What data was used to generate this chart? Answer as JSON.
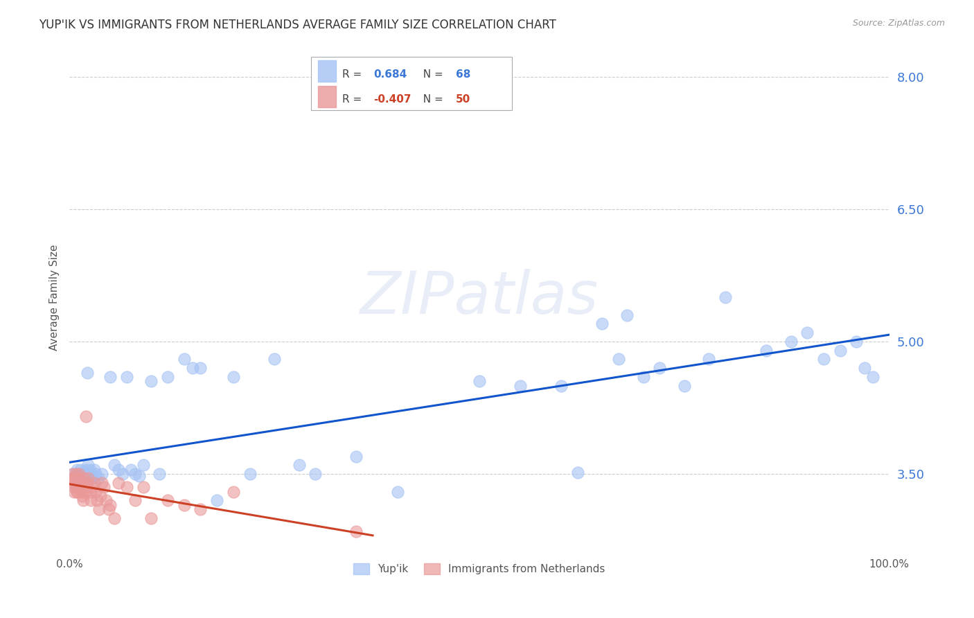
{
  "title": "YUP'IK VS IMMIGRANTS FROM NETHERLANDS AVERAGE FAMILY SIZE CORRELATION CHART",
  "source": "Source: ZipAtlas.com",
  "ylabel": "Average Family Size",
  "xlim": [
    0,
    1.0
  ],
  "ylim": [
    2.6,
    8.4
  ],
  "yticks": [
    3.5,
    5.0,
    6.5,
    8.0
  ],
  "xticks": [
    0.0,
    1.0
  ],
  "xticklabels": [
    "0.0%",
    "100.0%"
  ],
  "r_blue": 0.684,
  "n_blue": 68,
  "r_pink": -0.407,
  "n_pink": 50,
  "blue_color": "#a4c2f4",
  "pink_color": "#ea9999",
  "blue_line_color": "#1155cc",
  "pink_line_color": "#cc4125",
  "legend_blue_label": "Yup'ik",
  "legend_pink_label": "Immigrants from Netherlands",
  "watermark": "ZIPatlas",
  "blue_scatter_x": [
    0.005,
    0.007,
    0.008,
    0.009,
    0.01,
    0.01,
    0.012,
    0.013,
    0.014,
    0.015,
    0.016,
    0.018,
    0.019,
    0.02,
    0.022,
    0.023,
    0.024,
    0.025,
    0.026,
    0.027,
    0.028,
    0.03,
    0.032,
    0.035,
    0.04,
    0.05,
    0.055,
    0.06,
    0.065,
    0.07,
    0.075,
    0.08,
    0.085,
    0.09,
    0.1,
    0.11,
    0.12,
    0.14,
    0.15,
    0.16,
    0.18,
    0.2,
    0.22,
    0.25,
    0.28,
    0.3,
    0.35,
    0.4,
    0.5,
    0.55,
    0.6,
    0.62,
    0.65,
    0.67,
    0.68,
    0.7,
    0.72,
    0.75,
    0.78,
    0.8,
    0.85,
    0.88,
    0.9,
    0.92,
    0.94,
    0.96,
    0.97,
    0.98
  ],
  "blue_scatter_y": [
    3.5,
    3.45,
    3.5,
    3.55,
    3.5,
    3.4,
    3.45,
    3.55,
    3.5,
    3.45,
    3.5,
    3.52,
    3.48,
    3.55,
    4.65,
    3.6,
    3.5,
    3.55,
    3.5,
    3.45,
    3.48,
    3.55,
    3.5,
    3.45,
    3.5,
    4.6,
    3.6,
    3.55,
    3.5,
    4.6,
    3.55,
    3.5,
    3.48,
    3.6,
    4.55,
    3.5,
    4.6,
    4.8,
    4.7,
    4.7,
    3.2,
    4.6,
    3.5,
    4.8,
    3.6,
    3.5,
    3.7,
    3.3,
    4.55,
    4.5,
    4.5,
    3.52,
    5.2,
    4.8,
    5.3,
    4.6,
    4.7,
    4.5,
    4.8,
    5.5,
    4.9,
    5.0,
    5.1,
    4.8,
    4.9,
    5.0,
    4.7,
    4.6
  ],
  "pink_scatter_x": [
    0.003,
    0.004,
    0.005,
    0.005,
    0.006,
    0.007,
    0.008,
    0.008,
    0.009,
    0.009,
    0.01,
    0.01,
    0.011,
    0.012,
    0.012,
    0.013,
    0.014,
    0.015,
    0.016,
    0.017,
    0.018,
    0.019,
    0.02,
    0.021,
    0.022,
    0.023,
    0.025,
    0.026,
    0.028,
    0.03,
    0.032,
    0.034,
    0.036,
    0.038,
    0.04,
    0.042,
    0.045,
    0.048,
    0.05,
    0.055,
    0.06,
    0.07,
    0.08,
    0.09,
    0.1,
    0.12,
    0.14,
    0.16,
    0.2,
    0.35
  ],
  "pink_scatter_y": [
    3.5,
    3.45,
    3.4,
    3.35,
    3.3,
    3.45,
    3.5,
    3.35,
    3.4,
    3.3,
    3.45,
    3.3,
    3.4,
    3.35,
    3.5,
    3.4,
    3.35,
    3.3,
    3.25,
    3.2,
    3.45,
    3.3,
    4.15,
    3.4,
    3.35,
    3.45,
    3.3,
    3.2,
    3.35,
    3.4,
    3.3,
    3.2,
    3.1,
    3.25,
    3.4,
    3.35,
    3.2,
    3.1,
    3.15,
    3.0,
    3.4,
    3.35,
    3.2,
    3.35,
    3.0,
    3.2,
    3.15,
    3.1,
    3.3,
    2.85
  ]
}
